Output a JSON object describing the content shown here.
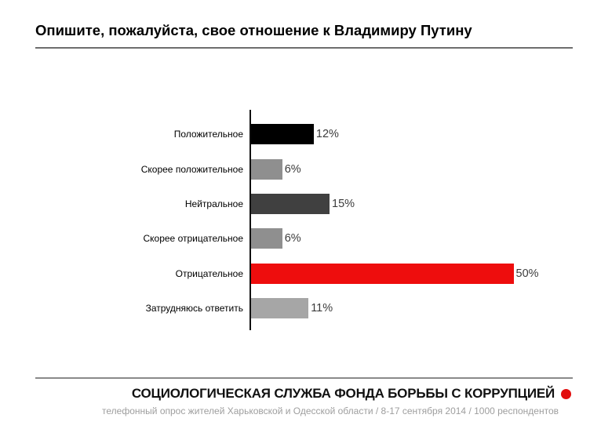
{
  "header": {
    "title": "Опишите, пожалуйста, свое отношение к Владимиру Путину"
  },
  "chart_data": {
    "type": "bar",
    "orientation": "horizontal",
    "title": "Опишите, пожалуйста, свое отношение к Владимиру Путину",
    "categories": [
      "Положительное",
      "Скорее положительное",
      "Нейтральное",
      "Скорее отрицательное",
      "Отрицательное",
      "Затрудняюсь ответить"
    ],
    "values": [
      12,
      6,
      15,
      6,
      50,
      11
    ],
    "value_suffix": "%",
    "xlim": [
      0,
      52
    ],
    "grid": "off",
    "legend": "none",
    "bar_colors": [
      "#000000",
      "#8f8f8f",
      "#404040",
      "#8f8f8f",
      "#ee0d0d",
      "#a6a6a6"
    ],
    "highlight_color": "#ee0d0d",
    "axis_note": "single vertical baseline on left, no tick labels"
  },
  "footer": {
    "org_title": "СОЦИОЛОГИЧЕСКАЯ СЛУЖБА ФОНДА БОРЬБЫ С КОРРУПЦИЕЙ",
    "survey_info": "телефонный опрос жителей Харьковской и Одесской области / 8-17 сентября 2014 / 1000 респондентов",
    "dot_color": "#e20d0d"
  }
}
